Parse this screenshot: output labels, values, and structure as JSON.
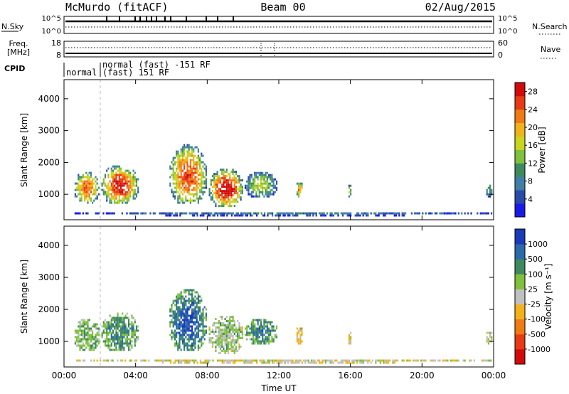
{
  "header": {
    "station": "McMurdo (fitACF)",
    "beam": "Beam 00",
    "date": "02/Aug/2015"
  },
  "top_panels": {
    "nsky_label": "N.Sky",
    "nsearch_label": "N.Search",
    "nsky_ticks": [
      "10^5",
      "10^0"
    ],
    "nsearch_ticks": [
      "10^5",
      "10^0"
    ],
    "freq_label_line1": "Freq.",
    "freq_label_line2": "[MHz]",
    "freq_ticks": [
      "18",
      "8"
    ],
    "nave_label": "Nave",
    "nave_ticks": [
      "60",
      "0"
    ],
    "cpid_label": "CPID",
    "cpid_entries": [
      {
        "text": "normal",
        "start_h": 0.0,
        "end_h": 1.75
      },
      {
        "text": "normal (fast) -151 RF",
        "start_h": 1.75,
        "end_h": 24.0,
        "line": 1
      },
      {
        "text": "(fast) 151 RF",
        "start_h": 1.75,
        "end_h": 24.0,
        "line": 2
      }
    ]
  },
  "chart_data": [
    {
      "type": "heatmap",
      "panel": "power",
      "ylabel": "Slant Range [km]",
      "xlabel": "",
      "xlim": [
        0,
        24
      ],
      "ylim": [
        200,
        4600
      ],
      "yticks": [
        "1000",
        "2000",
        "3000",
        "4000"
      ],
      "colorbar": {
        "label": "Power [dB]",
        "ticks": [
          "4",
          "8",
          "12",
          "16",
          "20",
          "24",
          "28"
        ],
        "range": [
          0,
          30
        ],
        "colors": [
          "#1a1ae6",
          "#2a4aa8",
          "#3f7fa8",
          "#3e8a5e",
          "#7fc03c",
          "#c8d61e",
          "#f2b21c",
          "#f27a12",
          "#e83a14",
          "#d20a0a"
        ]
      },
      "regions": [
        {
          "t0": 0.5,
          "t1": 2.0,
          "r0": 700,
          "r1": 1700,
          "peak": 24
        },
        {
          "t0": 2.0,
          "t1": 4.2,
          "r0": 700,
          "r1": 1900,
          "peak": 28
        },
        {
          "t0": 5.8,
          "t1": 8.0,
          "r0": 700,
          "r1": 2600,
          "peak": 26
        },
        {
          "t0": 8.0,
          "t1": 10.0,
          "r0": 600,
          "r1": 1800,
          "peak": 30
        },
        {
          "t0": 10.0,
          "t1": 11.9,
          "r0": 900,
          "r1": 1700,
          "peak": 16
        },
        {
          "t0": 12.9,
          "t1": 13.3,
          "r0": 900,
          "r1": 1400,
          "peak": 22
        },
        {
          "t0": 15.8,
          "t1": 16.1,
          "r0": 900,
          "r1": 1300,
          "peak": 14
        },
        {
          "t0": 23.5,
          "t1": 23.9,
          "r0": 900,
          "r1": 1300,
          "peak": 12
        },
        {
          "t0": 0.5,
          "t1": 23.9,
          "r0": 300,
          "r1": 450,
          "peak": 8
        }
      ]
    },
    {
      "type": "heatmap",
      "panel": "velocity",
      "ylabel": "Slant Range [km]",
      "xlabel": "Time UT",
      "xlim": [
        0,
        24
      ],
      "ylim": [
        200,
        4600
      ],
      "yticks": [
        "1000",
        "2000",
        "3000",
        "4000"
      ],
      "xticks": [
        "00:00",
        "04:00",
        "08:00",
        "12:00",
        "16:00",
        "20:00",
        "00:00"
      ],
      "colorbar": {
        "label": "Velocity [m s⁻¹]",
        "ticks": [
          "1000",
          "500",
          "100",
          "25",
          "-25",
          "-100",
          "-500",
          "-1000"
        ],
        "range": [
          -1000,
          1000
        ],
        "colors": [
          "#d20a0a",
          "#e83a14",
          "#f27a12",
          "#f2b21c",
          "#c0c0c0",
          "#7fc03c",
          "#3e8a5e",
          "#2a6aa8",
          "#1a3ab8"
        ]
      },
      "regions": [
        {
          "t0": 0.5,
          "t1": 2.0,
          "r0": 700,
          "r1": 1700,
          "peak": 300
        },
        {
          "t0": 2.0,
          "t1": 4.2,
          "r0": 700,
          "r1": 1900,
          "peak": 500
        },
        {
          "t0": 5.8,
          "t1": 8.0,
          "r0": 700,
          "r1": 2600,
          "peak": 800
        },
        {
          "t0": 8.0,
          "t1": 10.0,
          "r0": 600,
          "r1": 1800,
          "peak": 200
        },
        {
          "t0": 10.0,
          "t1": 11.9,
          "r0": 900,
          "r1": 1700,
          "peak": 600
        },
        {
          "t0": 12.9,
          "t1": 13.3,
          "r0": 900,
          "r1": 1400,
          "peak": -200
        },
        {
          "t0": 15.8,
          "t1": 16.1,
          "r0": 900,
          "r1": 1300,
          "peak": -100
        },
        {
          "t0": 23.5,
          "t1": 23.9,
          "r0": 900,
          "r1": 1300,
          "peak": 50
        },
        {
          "t0": 0.5,
          "t1": 23.9,
          "r0": 300,
          "r1": 450,
          "peak": -50
        }
      ]
    }
  ]
}
